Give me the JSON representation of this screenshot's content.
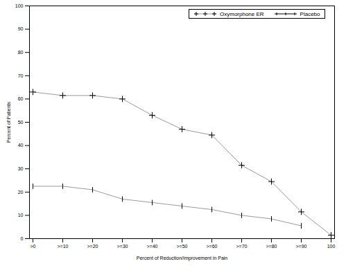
{
  "chart_data": {
    "type": "line",
    "x_label": "Percent of Reduction/Improvement in Pain",
    "y_label": "Percent of Patients",
    "categories": [
      ">0",
      ">=10",
      ">=20",
      ">=30",
      ">=40",
      ">=50",
      ">=60",
      ">=70",
      ">=80",
      ">=90",
      "100"
    ],
    "series": [
      {
        "name": "Oxymorphone ER",
        "color": "#999999",
        "marker": "plus",
        "values": [
          63,
          61.5,
          61.5,
          60,
          53,
          47,
          44.5,
          31.5,
          24.5,
          11.5,
          1.5
        ]
      },
      {
        "name": "Placebo",
        "color": "#999999",
        "marker": "tick",
        "values": [
          22.5,
          22.5,
          21,
          17,
          15.5,
          14,
          12.5,
          10,
          8.5,
          5.5,
          null
        ]
      }
    ],
    "ylim": [
      0,
      100
    ],
    "yticks": [
      0,
      10,
      20,
      30,
      40,
      50,
      60,
      70,
      80,
      90,
      100
    ],
    "grid": false,
    "legend": "top-right"
  }
}
